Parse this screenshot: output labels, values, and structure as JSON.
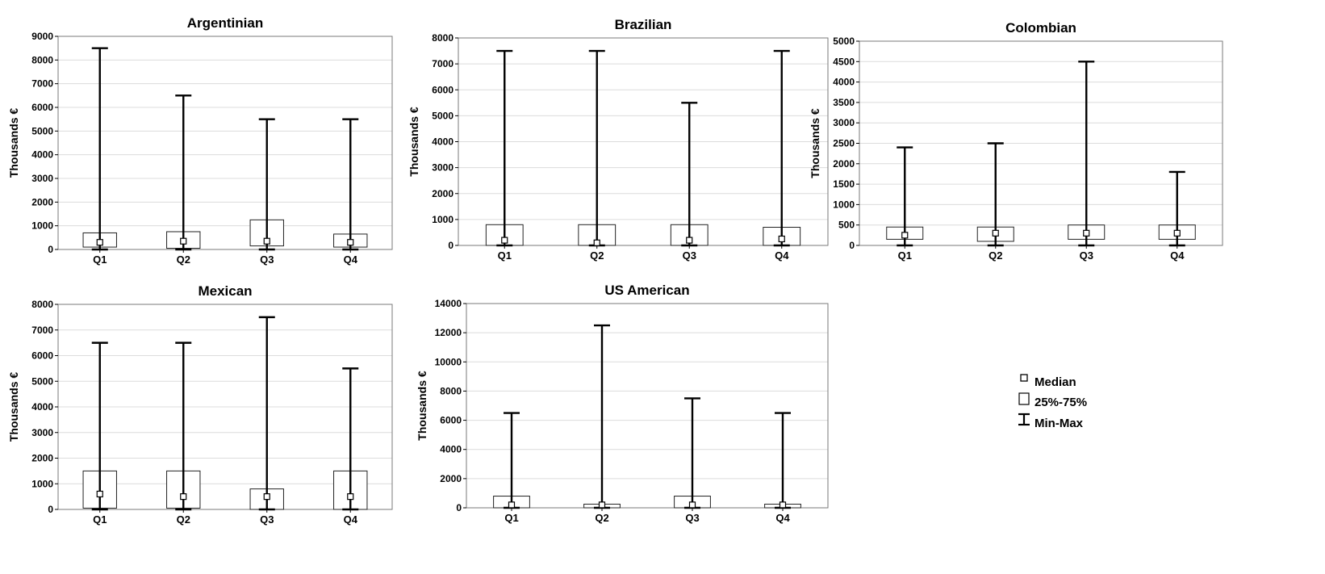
{
  "chart_data": [
    {
      "type": "box",
      "title": "Argentinian",
      "ylabel": "Thousands €",
      "categories": [
        "Q1",
        "Q2",
        "Q3",
        "Q4"
      ],
      "ylim": [
        0,
        9000
      ],
      "yticks": [
        0,
        1000,
        2000,
        3000,
        4000,
        5000,
        6000,
        7000,
        8000,
        9000
      ],
      "grid": true,
      "boxes": [
        {
          "min": 0,
          "q1": 100,
          "median": 300,
          "q3": 700,
          "max": 8500
        },
        {
          "min": 0,
          "q1": 50,
          "median": 350,
          "q3": 750,
          "max": 6500
        },
        {
          "min": 0,
          "q1": 150,
          "median": 350,
          "q3": 1250,
          "max": 5500
        },
        {
          "min": 0,
          "q1": 100,
          "median": 300,
          "q3": 650,
          "max": 5500
        }
      ]
    },
    {
      "type": "box",
      "title": "Brazilian",
      "ylabel": "Thousands €",
      "categories": [
        "Q1",
        "Q2",
        "Q3",
        "Q4"
      ],
      "ylim": [
        0,
        8000
      ],
      "yticks": [
        0,
        1000,
        2000,
        3000,
        4000,
        5000,
        6000,
        7000,
        8000
      ],
      "grid": true,
      "boxes": [
        {
          "min": 0,
          "q1": 0,
          "median": 200,
          "q3": 800,
          "max": 7500
        },
        {
          "min": 0,
          "q1": 0,
          "median": 100,
          "q3": 800,
          "max": 7500
        },
        {
          "min": 0,
          "q1": 0,
          "median": 200,
          "q3": 800,
          "max": 5500
        },
        {
          "min": 0,
          "q1": 0,
          "median": 250,
          "q3": 700,
          "max": 7500
        }
      ]
    },
    {
      "type": "box",
      "title": "Colombian",
      "ylabel": "Thousands €",
      "categories": [
        "Q1",
        "Q2",
        "Q3",
        "Q4"
      ],
      "ylim": [
        0,
        5000
      ],
      "yticks": [
        0,
        500,
        1000,
        1500,
        2000,
        2500,
        3000,
        3500,
        4000,
        4500,
        5000
      ],
      "grid": true,
      "boxes": [
        {
          "min": 0,
          "q1": 150,
          "median": 250,
          "q3": 450,
          "max": 2400
        },
        {
          "min": 0,
          "q1": 100,
          "median": 300,
          "q3": 450,
          "max": 2500
        },
        {
          "min": 0,
          "q1": 150,
          "median": 300,
          "q3": 500,
          "max": 4500
        },
        {
          "min": 0,
          "q1": 150,
          "median": 300,
          "q3": 500,
          "max": 1800
        }
      ]
    },
    {
      "type": "box",
      "title": "Mexican",
      "ylabel": "Thousands €",
      "categories": [
        "Q1",
        "Q2",
        "Q3",
        "Q4"
      ],
      "ylim": [
        0,
        8000
      ],
      "yticks": [
        0,
        1000,
        2000,
        3000,
        4000,
        5000,
        6000,
        7000,
        8000
      ],
      "grid": true,
      "boxes": [
        {
          "min": 0,
          "q1": 50,
          "median": 600,
          "q3": 1500,
          "max": 6500
        },
        {
          "min": 0,
          "q1": 50,
          "median": 500,
          "q3": 1500,
          "max": 6500
        },
        {
          "min": 0,
          "q1": 0,
          "median": 500,
          "q3": 800,
          "max": 7500
        },
        {
          "min": 0,
          "q1": 0,
          "median": 500,
          "q3": 1500,
          "max": 5500
        }
      ]
    },
    {
      "type": "box",
      "title": "US American",
      "ylabel": "Thousands €",
      "categories": [
        "Q1",
        "Q2",
        "Q3",
        "Q4"
      ],
      "ylim": [
        0,
        14000
      ],
      "yticks": [
        0,
        2000,
        4000,
        6000,
        8000,
        10000,
        12000,
        14000
      ],
      "grid": true,
      "boxes": [
        {
          "min": 0,
          "q1": 0,
          "median": 200,
          "q3": 800,
          "max": 6500
        },
        {
          "min": 0,
          "q1": 0,
          "median": 200,
          "q3": 250,
          "max": 12500
        },
        {
          "min": 0,
          "q1": 0,
          "median": 200,
          "q3": 800,
          "max": 7500
        },
        {
          "min": 0,
          "q1": 0,
          "median": 200,
          "q3": 250,
          "max": 6500
        }
      ]
    }
  ],
  "legend": {
    "median": "Median",
    "box": "25%-75%",
    "whisker": "Min-Max"
  }
}
